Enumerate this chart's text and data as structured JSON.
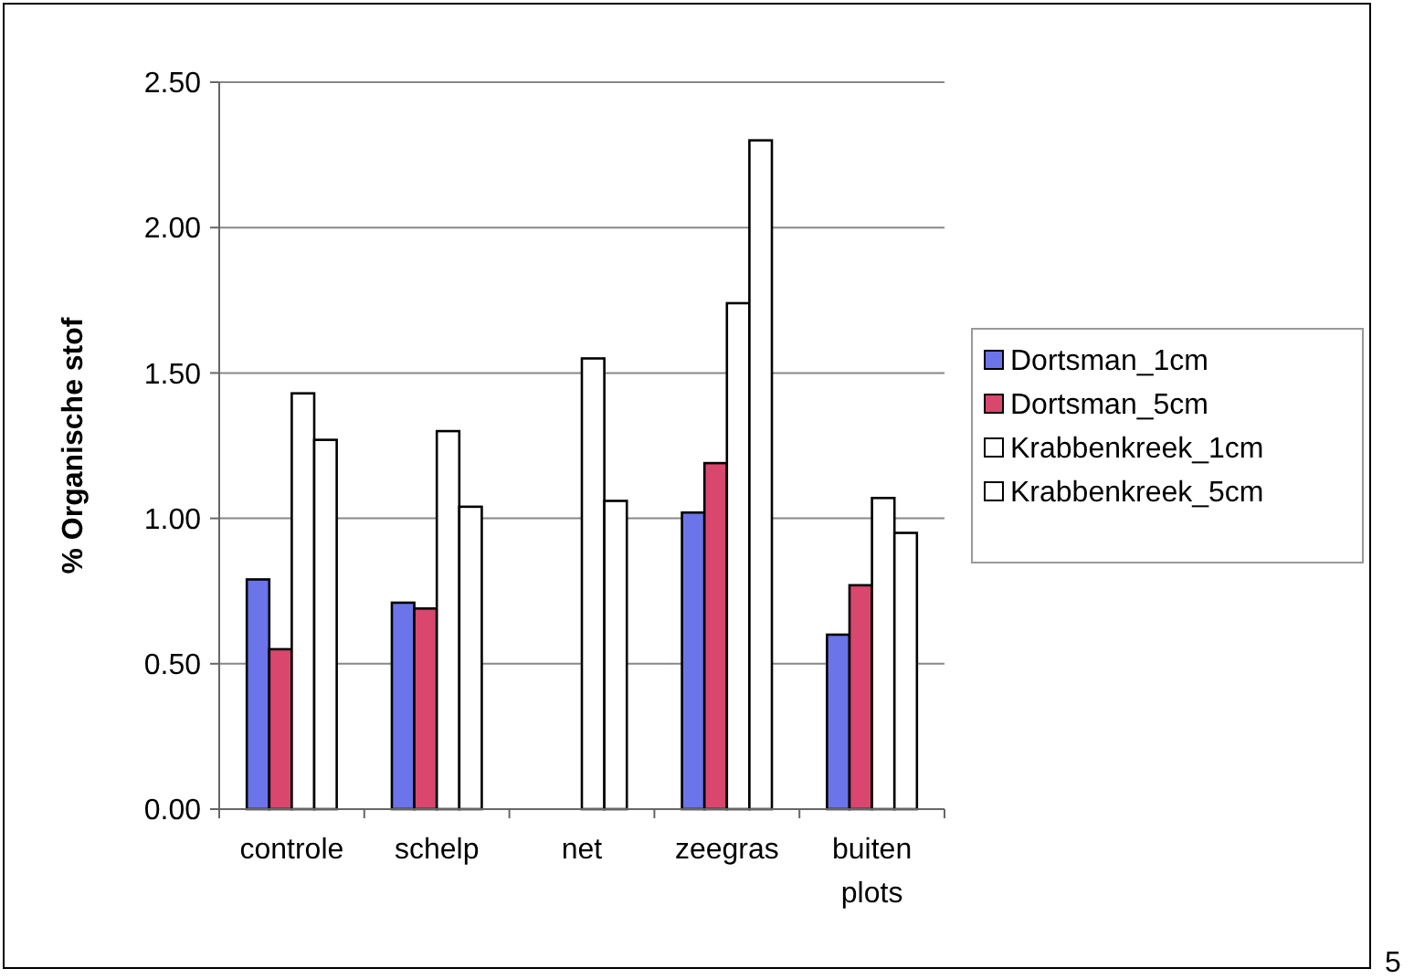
{
  "chart_data": {
    "type": "bar",
    "ylabel": "% Organische stof",
    "categories": [
      "controle",
      "schelp",
      "net",
      "zeegras",
      "buiten plots"
    ],
    "series": [
      {
        "name": "Dortsman_1cm",
        "color": "#6b74e8",
        "values": [
          0.79,
          0.71,
          null,
          1.02,
          0.6
        ]
      },
      {
        "name": "Dortsman_5cm",
        "color": "#d9476e",
        "values": [
          0.55,
          0.69,
          null,
          1.19,
          0.77
        ]
      },
      {
        "name": "Krabbenkreek_1cm",
        "color": "#ffffff",
        "values": [
          1.43,
          1.3,
          1.55,
          1.74,
          1.07
        ]
      },
      {
        "name": "Krabbenkreek_5cm",
        "color": "#ffffff",
        "values": [
          1.27,
          1.04,
          1.06,
          2.3,
          0.95
        ]
      }
    ],
    "ylim": [
      0,
      2.5
    ],
    "yticks": [
      {
        "value": 0,
        "label": "0.00"
      },
      {
        "value": 0.5,
        "label": "0.50"
      },
      {
        "value": 1,
        "label": "1.00"
      },
      {
        "value": 1.5,
        "label": "1.50"
      },
      {
        "value": 2,
        "label": "2.00"
      },
      {
        "value": 2.5,
        "label": "2.50"
      }
    ],
    "grid": "y",
    "legend": "right",
    "annotations": [
      "5"
    ]
  }
}
